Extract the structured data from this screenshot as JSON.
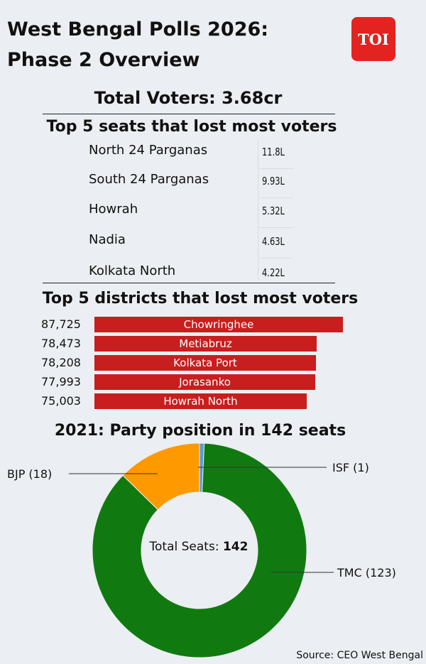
{
  "header": {
    "title_line1": "West Bengal Polls 2026:",
    "title_line2": "Phase 2 Overview",
    "logo_text": "TOI"
  },
  "total_voters": "Total Voters: 3.68cr",
  "seats_section": {
    "heading": "Top 5 seats that lost most voters",
    "rows": [
      {
        "name": "North 24 Parganas",
        "value": "11.8L"
      },
      {
        "name": "South 24 Parganas",
        "value": "9.93L"
      },
      {
        "name": "Howrah",
        "value": "5.32L"
      },
      {
        "name": "Nadia",
        "value": "4.63L"
      },
      {
        "name": "Kolkata North",
        "value": "4.22L"
      }
    ]
  },
  "districts_section": {
    "heading": "Top 5 districts that lost most voters"
  },
  "donut_section": {
    "heading": "2021: Party position in 142 seats",
    "center_text": "Total Seats:",
    "center_value": "142"
  },
  "source": "Source: CEO West Bengal",
  "colors": {
    "bar": "#c81e1e",
    "tmc": "#107a10",
    "bjp": "#ff9900",
    "isf": "#5a9bd5",
    "logo": "#e22320"
  },
  "chart_data": [
    {
      "type": "bar",
      "orientation": "horizontal",
      "categories": [
        "Chowringhee",
        "Metiabruz",
        "Kolkata Port",
        "Jorasanko",
        "Howrah North"
      ],
      "values": [
        87725,
        78473,
        78208,
        77993,
        75003
      ],
      "value_labels": [
        "87,725",
        "78,473",
        "78,208",
        "77,993",
        "75,003"
      ],
      "title": "Top 5 districts that lost most voters"
    },
    {
      "type": "pie",
      "donut": true,
      "title": "2021: Party position in 142 seats",
      "labels": [
        "TMC (123)",
        "BJP (18)",
        "ISF (1)"
      ],
      "names": [
        "TMC",
        "BJP",
        "ISF"
      ],
      "values": [
        123,
        18,
        1
      ],
      "total": 142
    }
  ]
}
